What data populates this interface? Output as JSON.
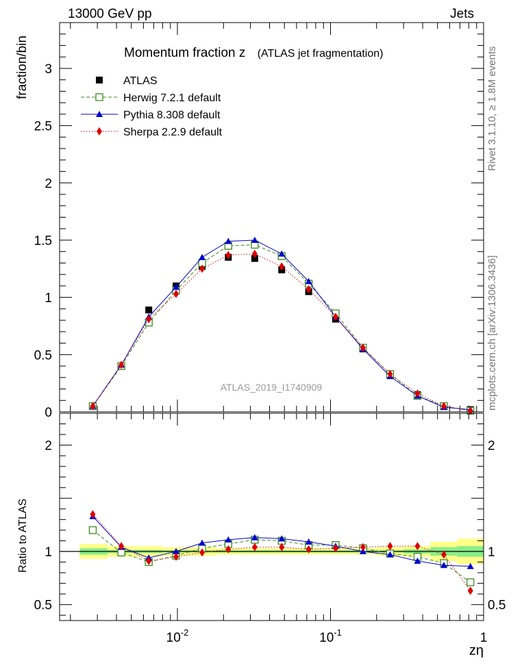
{
  "header": {
    "left": "13000 GeV pp",
    "right": "Jets"
  },
  "title": {
    "main": "Momentum fraction z",
    "sub": "(ATLAS jet fragmentation)"
  },
  "side_labels": {
    "rivet": "Rivet 3.1.10, ≥ 1.8M events",
    "mcplots": "mcplots.cern.ch [arXiv:1306.3436]"
  },
  "watermark": "ATLAS_2019_I1740909",
  "chart_data": [
    {
      "type": "scatter",
      "panel": "main",
      "ylabel": "fraction/bin",
      "xlabel": "zη",
      "xscale": "log",
      "xlim": [
        0.0017,
        1.0
      ],
      "ylim": [
        0,
        3.4
      ],
      "yticks": [
        "0",
        "0.5",
        "1",
        "1.5",
        "2",
        "2.5",
        "3"
      ],
      "xticks": [
        "10⁻²",
        "10⁻¹",
        "1"
      ],
      "x": [
        0.0028,
        0.0043,
        0.0065,
        0.0098,
        0.0145,
        0.0215,
        0.032,
        0.048,
        0.072,
        0.108,
        0.163,
        0.245,
        0.37,
        0.55,
        0.82
      ],
      "series": [
        {
          "name": "ATLAS",
          "color": "#000000",
          "marker": "square-filled",
          "values": [
            0.05,
            0.4,
            0.89,
            1.1,
            1.27,
            1.35,
            1.34,
            1.24,
            1.05,
            0.81,
            0.55,
            0.32,
            0.15,
            0.05,
            0.02
          ]
        },
        {
          "name": "Herwig 7.2.1 default",
          "color": "#3a8a1e",
          "marker": "square-open",
          "line": "dashed",
          "values": [
            0.05,
            0.4,
            0.78,
            1.06,
            1.3,
            1.45,
            1.46,
            1.36,
            1.12,
            0.86,
            0.56,
            0.33,
            0.14,
            0.05,
            0.01
          ]
        },
        {
          "name": "Pythia 8.308 default",
          "color": "#0000cc",
          "marker": "triangle",
          "line": "solid",
          "values": [
            0.05,
            0.41,
            0.83,
            1.09,
            1.35,
            1.49,
            1.5,
            1.38,
            1.14,
            0.83,
            0.55,
            0.31,
            0.14,
            0.04,
            0.02
          ]
        },
        {
          "name": "Sherpa 2.2.9 default",
          "color": "#dd0000",
          "marker": "diamond",
          "line": "dotted",
          "values": [
            0.05,
            0.41,
            0.81,
            1.03,
            1.25,
            1.37,
            1.38,
            1.27,
            1.07,
            0.83,
            0.56,
            0.33,
            0.16,
            0.05,
            0.01
          ]
        }
      ],
      "legend": "top-left"
    },
    {
      "type": "line",
      "panel": "ratio",
      "ylabel": "Ratio to ATLAS",
      "xlabel": "zη",
      "xscale": "log",
      "xlim": [
        0.0017,
        1.0
      ],
      "ylim": [
        0.35,
        2.3
      ],
      "yticks": [
        "0.5",
        "1",
        "2"
      ],
      "x": [
        0.0028,
        0.0043,
        0.0065,
        0.0098,
        0.0145,
        0.0215,
        0.032,
        0.048,
        0.072,
        0.108,
        0.163,
        0.245,
        0.37,
        0.55,
        0.82
      ],
      "bin_edges": [
        0.0023,
        0.0035,
        0.0053,
        0.008,
        0.012,
        0.018,
        0.027,
        0.04,
        0.06,
        0.09,
        0.135,
        0.2,
        0.3,
        0.45,
        0.67,
        1.0
      ],
      "band_stat_halfwidth": [
        0.03,
        0.015,
        0.015,
        0.01,
        0.01,
        0.01,
        0.01,
        0.01,
        0.01,
        0.01,
        0.01,
        0.01,
        0.02,
        0.04,
        0.05
      ],
      "band_total_halfwidth": [
        0.07,
        0.05,
        0.05,
        0.04,
        0.04,
        0.03,
        0.03,
        0.03,
        0.03,
        0.03,
        0.03,
        0.04,
        0.05,
        0.09,
        0.12
      ],
      "reference": 1.0,
      "series": [
        {
          "name": "Herwig 7.2.1 default",
          "color": "#3a8a1e",
          "values": [
            1.2,
            0.99,
            0.9,
            0.96,
            1.03,
            1.07,
            1.11,
            1.1,
            1.06,
            1.06,
            1.03,
            0.98,
            0.95,
            0.89,
            0.71
          ]
        },
        {
          "name": "Pythia 8.308 default",
          "color": "#0000cc",
          "values": [
            1.33,
            1.04,
            0.94,
            1.0,
            1.08,
            1.11,
            1.13,
            1.12,
            1.09,
            1.05,
            1.0,
            0.97,
            0.91,
            0.87,
            0.86
          ]
        },
        {
          "name": "Sherpa 2.2.9 default",
          "color": "#dd0000",
          "values": [
            1.35,
            1.05,
            0.91,
            0.95,
            0.99,
            1.02,
            1.04,
            1.04,
            1.02,
            1.03,
            1.04,
            1.05,
            1.05,
            0.97,
            0.63
          ]
        }
      ]
    }
  ]
}
